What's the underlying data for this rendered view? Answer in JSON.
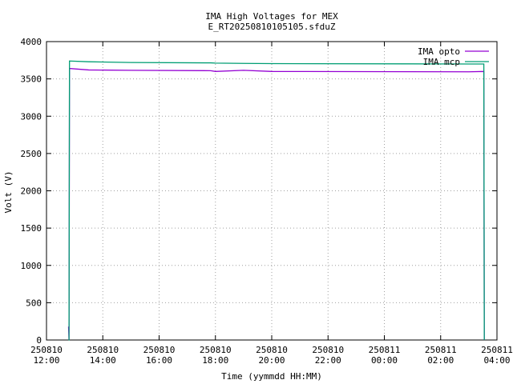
{
  "chart_data": {
    "type": "line",
    "title": "IMA High Voltages for MEX",
    "subtitle": "E_RT20250810105105.sfduZ",
    "x_label": "Time (yymmdd HH:MM)",
    "y_label": "Volt (V)",
    "xlim": [
      "250810 12:00",
      "250811 04:00"
    ],
    "xticks": [
      "250810 12:00",
      "250810 14:00",
      "250810 16:00",
      "250810 18:00",
      "250810 20:00",
      "250810 22:00",
      "250811 00:00",
      "250811 02:00",
      "250811 04:00"
    ],
    "ylim": [
      0,
      4000
    ],
    "yticks": [
      0,
      500,
      1000,
      1500,
      2000,
      2500,
      3000,
      3500,
      4000
    ],
    "grid": true,
    "legend": "top-right",
    "x": [
      "250810 12:47",
      "250810 12:48",
      "250810 12:49",
      "250810 13:30",
      "250810 15:00",
      "250810 17:50",
      "250810 18:00",
      "250810 19:00",
      "250810 20:00",
      "250811 03:00",
      "250811 03:32",
      "250811 03:33"
    ],
    "series": [
      {
        "name": "IMA opto",
        "color": "#9400d3",
        "values": [
          180,
          0,
          3640,
          3620,
          3615,
          3610,
          3600,
          3615,
          3600,
          3595,
          3600,
          0
        ]
      },
      {
        "name": "IMA mcp",
        "color": "#009e73",
        "values": [
          0,
          0,
          3740,
          3730,
          3720,
          3715,
          3712,
          3708,
          3705,
          3700,
          3700,
          0
        ]
      }
    ]
  }
}
